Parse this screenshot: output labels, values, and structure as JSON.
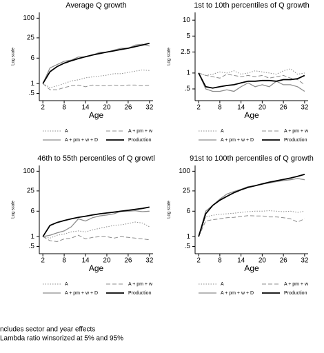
{
  "chart_data": [
    {
      "type": "line",
      "title": "Average Q growth",
      "xlabel": "Age",
      "ylabel": "Log scale",
      "log_y": true,
      "x": [
        2,
        4,
        6,
        8,
        10,
        12,
        14,
        16,
        18,
        20,
        22,
        24,
        26,
        28,
        30,
        32
      ],
      "xlim": [
        1,
        33
      ],
      "xticks": [
        2,
        8,
        14,
        20,
        26,
        32
      ],
      "ylim": [
        0.3,
        150
      ],
      "yticks": [
        {
          "value": 0.5,
          "label": ".5"
        },
        1,
        6,
        25,
        100
      ],
      "series": [
        {
          "name": "A",
          "color": "#8c8c8c",
          "dash": "dotted",
          "values": [
            1,
            0.75,
            0.85,
            1.0,
            1.2,
            1.3,
            1.5,
            1.6,
            1.7,
            1.8,
            2.0,
            2.0,
            2.2,
            2.4,
            2.6,
            2.5
          ]
        },
        {
          "name": "A + pm + w",
          "color": "#8c8c8c",
          "dash": "dashed",
          "values": [
            1,
            0.65,
            0.65,
            0.75,
            0.85,
            0.9,
            0.8,
            0.9,
            0.85,
            0.85,
            0.9,
            0.85,
            0.9,
            0.9,
            0.85,
            0.9
          ]
        },
        {
          "name": "A + pm + w + D",
          "color": "#8c8c8c",
          "dash": "solid",
          "values": [
            1,
            3,
            3.8,
            4.8,
            5.2,
            6.5,
            6.5,
            7.5,
            9,
            9,
            10.5,
            12,
            12,
            15,
            16,
            14
          ]
        },
        {
          "name": "Production",
          "color": "#000000",
          "dash": "solid",
          "values": [
            1,
            2.3,
            3.3,
            4.2,
            5,
            5.8,
            6.6,
            7.5,
            8.3,
            9.2,
            10,
            11,
            12,
            13.5,
            15,
            17
          ]
        }
      ]
    },
    {
      "type": "line",
      "title": "1st to 10th percentiles of Q growth",
      "xlabel": "Age",
      "ylabel": "Log scale",
      "log_y": true,
      "x": [
        2,
        4,
        6,
        8,
        10,
        12,
        14,
        16,
        18,
        20,
        22,
        24,
        26,
        28,
        30,
        32
      ],
      "xlim": [
        1,
        33
      ],
      "xticks": [
        2,
        8,
        14,
        20,
        26,
        32
      ],
      "ylim": [
        0.3,
        14
      ],
      "yticks": [
        {
          "value": 0.5,
          "label": ".5"
        },
        1,
        2.5,
        5,
        10
      ],
      "series": [
        {
          "name": "A",
          "color": "#8c8c8c",
          "dash": "dotted",
          "values": [
            1,
            0.9,
            0.95,
            1.05,
            1.0,
            1.1,
            0.95,
            1.0,
            1.1,
            1.05,
            1.0,
            0.95,
            1.1,
            1.2,
            0.95,
            1.0
          ]
        },
        {
          "name": "A + pm + w",
          "color": "#8c8c8c",
          "dash": "dashed",
          "values": [
            1,
            0.9,
            0.85,
            0.8,
            0.95,
            0.9,
            0.85,
            0.9,
            0.85,
            0.9,
            0.8,
            0.85,
            0.9,
            0.8,
            0.75,
            0.6
          ]
        },
        {
          "name": "A + pm + w + D",
          "color": "#8c8c8c",
          "dash": "solid",
          "values": [
            1,
            0.5,
            0.45,
            0.45,
            0.48,
            0.45,
            0.55,
            0.65,
            0.55,
            0.6,
            0.55,
            0.7,
            0.6,
            0.6,
            0.55,
            0.45
          ]
        },
        {
          "name": "Production",
          "color": "#000000",
          "dash": "solid",
          "values": [
            1,
            0.55,
            0.52,
            0.55,
            0.58,
            0.6,
            0.65,
            0.7,
            0.7,
            0.72,
            0.72,
            0.7,
            0.75,
            0.75,
            0.78,
            0.9
          ]
        }
      ]
    },
    {
      "type": "line",
      "title": "46th to 55th percentiles of Q growtl",
      "xlabel": "Age",
      "ylabel": "Log scale",
      "log_y": true,
      "x": [
        2,
        4,
        6,
        8,
        10,
        12,
        14,
        16,
        18,
        20,
        22,
        24,
        26,
        28,
        30,
        32
      ],
      "xlim": [
        1,
        33
      ],
      "xticks": [
        2,
        8,
        14,
        20,
        26,
        32
      ],
      "ylim": [
        0.3,
        150
      ],
      "yticks": [
        {
          "value": 0.5,
          "label": ".5"
        },
        1,
        6,
        25,
        100
      ],
      "series": [
        {
          "name": "A",
          "color": "#8c8c8c",
          "dash": "dotted",
          "values": [
            1,
            0.9,
            1.1,
            1.2,
            1.4,
            1.5,
            1.4,
            1.6,
            1.8,
            2,
            2.2,
            2.3,
            2.5,
            2.8,
            2.6,
            2
          ]
        },
        {
          "name": "A + pm + w",
          "color": "#8c8c8c",
          "dash": "dashed",
          "values": [
            1,
            0.75,
            0.7,
            0.85,
            0.9,
            1.1,
            0.85,
            0.95,
            1.0,
            1.0,
            0.9,
            1.0,
            0.95,
            0.9,
            0.85,
            0.8
          ]
        },
        {
          "name": "A + pm + w + D",
          "color": "#8c8c8c",
          "dash": "solid",
          "values": [
            1,
            1.1,
            1.3,
            1.5,
            2,
            3.5,
            3,
            3.8,
            4.3,
            4.6,
            5,
            6,
            6,
            6.2,
            5.8,
            6
          ]
        },
        {
          "name": "Production",
          "color": "#000000",
          "dash": "solid",
          "values": [
            1,
            2.2,
            2.7,
            3.1,
            3.5,
            3.9,
            4.2,
            4.6,
            5,
            5.3,
            5.6,
            6,
            6.4,
            6.8,
            7.3,
            8
          ]
        }
      ]
    },
    {
      "type": "line",
      "title": "91st to 100th percentiles of Q growth",
      "xlabel": "Age",
      "ylabel": "Log scale",
      "log_y": true,
      "x": [
        2,
        4,
        6,
        8,
        10,
        12,
        14,
        16,
        18,
        20,
        22,
        24,
        26,
        28,
        30,
        32
      ],
      "xlim": [
        1,
        33
      ],
      "xticks": [
        2,
        8,
        14,
        20,
        26,
        32
      ],
      "ylim": [
        0.3,
        150
      ],
      "yticks": [
        {
          "value": 0.5,
          "label": ".5"
        },
        1,
        6,
        25,
        100
      ],
      "series": [
        {
          "name": "A",
          "color": "#8c8c8c",
          "dash": "dotted",
          "values": [
            1,
            4,
            4.5,
            4.8,
            5,
            5.2,
            5.5,
            5.8,
            6,
            6,
            6.2,
            6,
            5.8,
            6,
            5.5,
            6
          ]
        },
        {
          "name": "A + pm + w",
          "color": "#8c8c8c",
          "dash": "dashed",
          "values": [
            1,
            3,
            3.3,
            3.5,
            3.8,
            3.9,
            4.1,
            4.4,
            4.3,
            4.3,
            4.0,
            4.0,
            3.8,
            3.5,
            2.8,
            3.5
          ]
        },
        {
          "name": "A + pm + w + D",
          "color": "#8c8c8c",
          "dash": "solid",
          "values": [
            1,
            6,
            9,
            14,
            20,
            24,
            28,
            34,
            36,
            40,
            44,
            48,
            52,
            55,
            60,
            55
          ]
        },
        {
          "name": "Production",
          "color": "#000000",
          "dash": "solid",
          "values": [
            1,
            5,
            9,
            13,
            17,
            22,
            27,
            32,
            36,
            41,
            46,
            51,
            56,
            62,
            70,
            80
          ]
        }
      ]
    }
  ],
  "notes": [
    "ncludes sector and year effects",
    "Lambda ratio winsorized at 5% and 95%"
  ]
}
